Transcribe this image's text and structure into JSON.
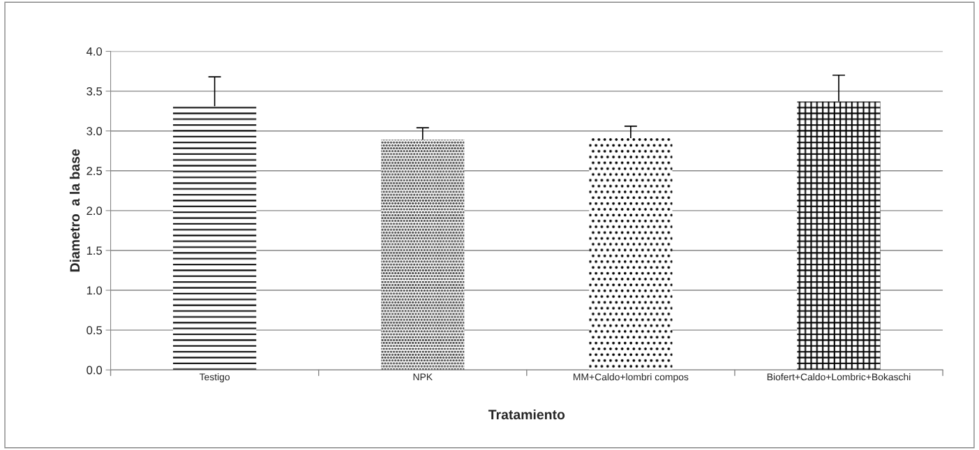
{
  "chart_data": {
    "type": "bar",
    "xlabel": "Tratamiento",
    "ylabel": "Diametro  a la base",
    "categories": [
      "Testigo",
      "NPK",
      "MM+Caldo+lombri compos",
      "Biofert+Caldo+Lombric+Bokaschi"
    ],
    "values": [
      3.31,
      2.89,
      2.91,
      3.37
    ],
    "errors": [
      [
        3.31,
        3.68
      ],
      [
        2.89,
        3.04
      ],
      [
        2.91,
        3.06
      ],
      [
        3.37,
        3.7
      ]
    ],
    "color": "#000000",
    "ylim": [
      0,
      4
    ],
    "yticks": [
      {
        "value": 0,
        "label": "0.0"
      },
      {
        "value": 0.5,
        "label": "0.5"
      },
      {
        "value": 1,
        "label": "1.0"
      },
      {
        "value": 1.5,
        "label": "1.5"
      },
      {
        "value": 2,
        "label": "2.0"
      },
      {
        "value": 2.5,
        "label": "2.5"
      },
      {
        "value": 3,
        "label": "3.0"
      },
      {
        "value": 3.5,
        "label": "3.5"
      },
      {
        "value": 4,
        "label": "4.0"
      }
    ],
    "grid": "y",
    "legend": false
  }
}
